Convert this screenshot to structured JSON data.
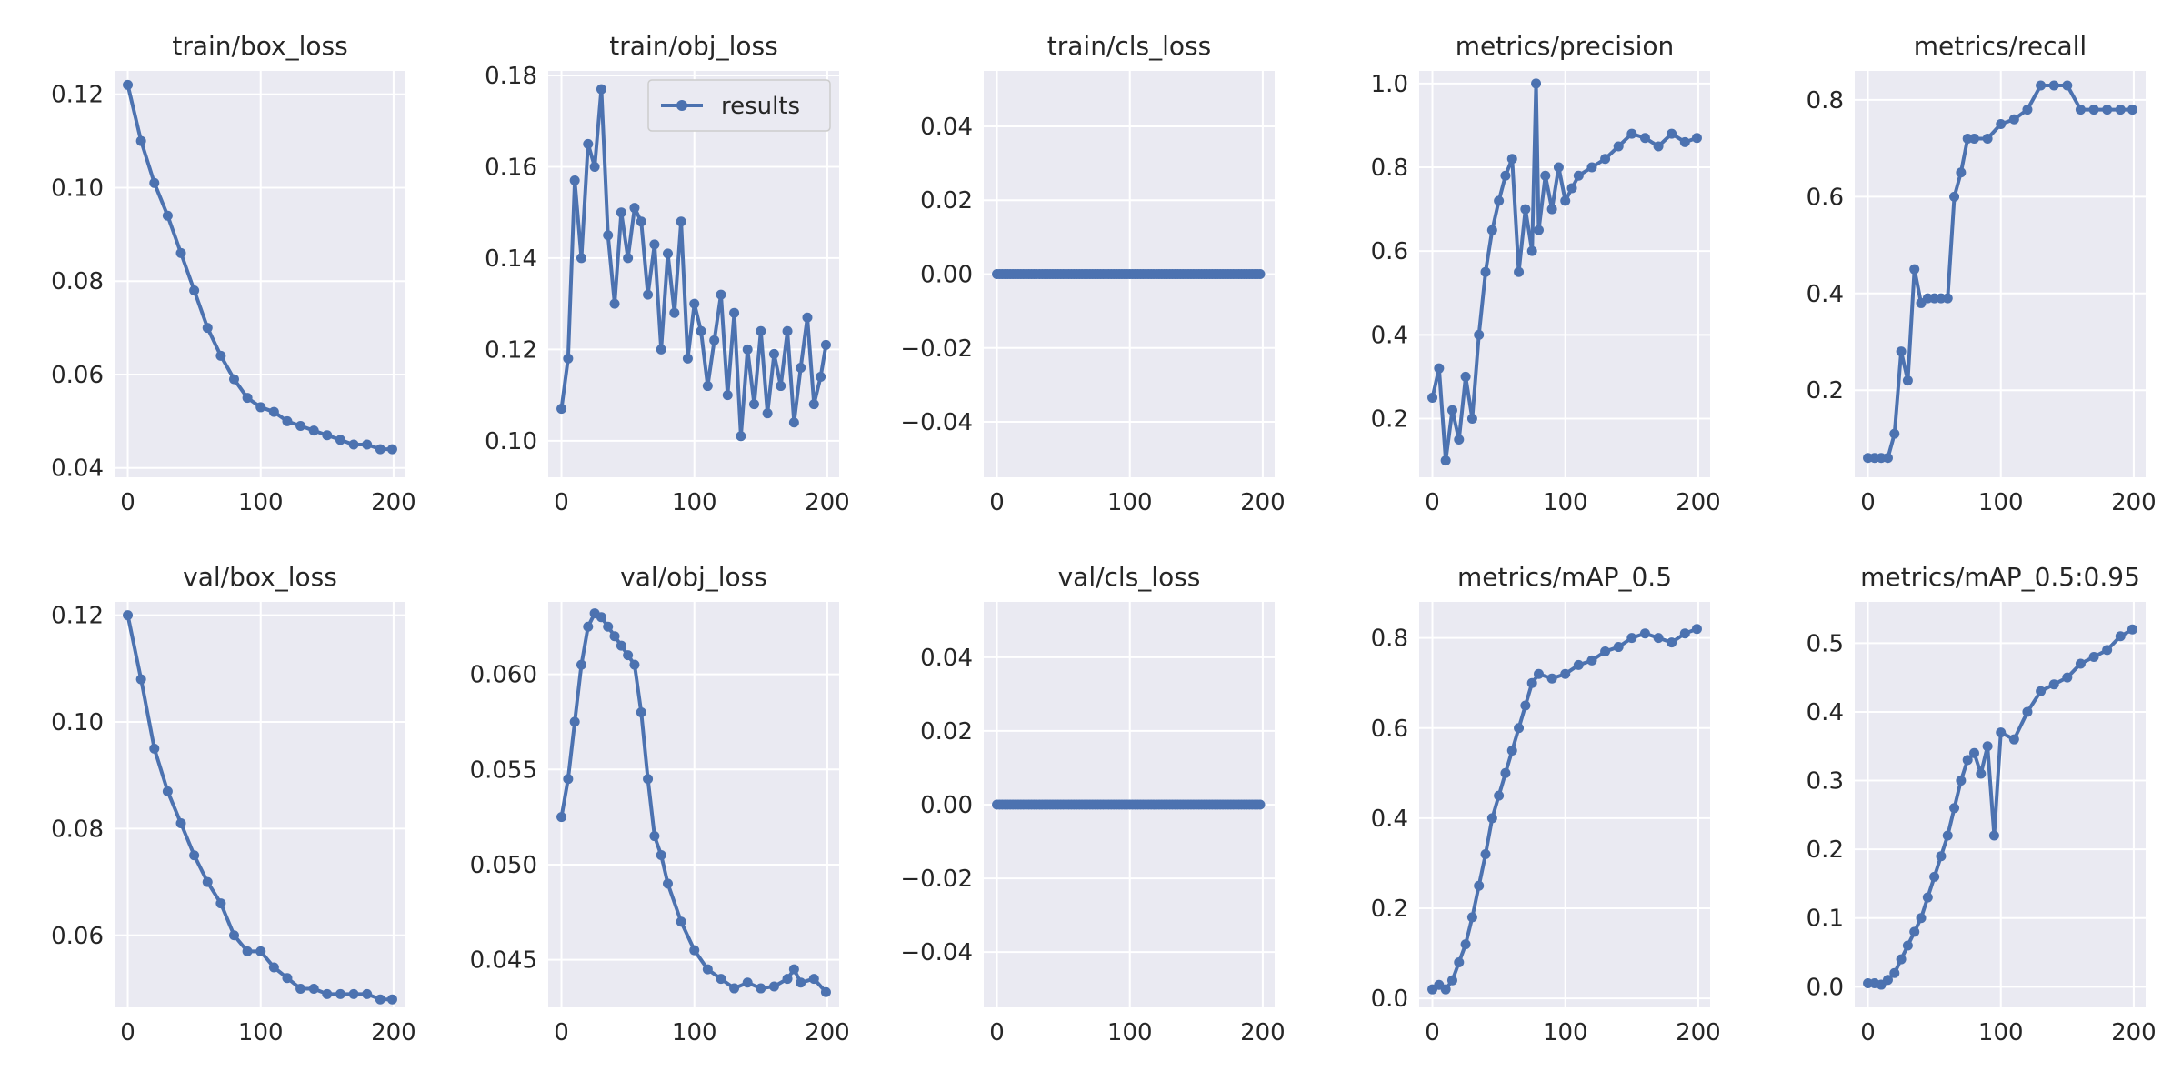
{
  "figure": {
    "title": "results"
  },
  "style": {
    "series_color": "#4C72B0",
    "panel_bg": "#EAEAF2",
    "grid_color": "#ffffff",
    "text_color": "#262626"
  },
  "chart_data": [
    {
      "id": "train_box_loss",
      "type": "line",
      "title": "train/box_loss",
      "xlim": [
        0,
        199
      ],
      "ylim": [
        0.038,
        0.125
      ],
      "xticks": [
        0,
        100,
        200
      ],
      "yticks": [
        0.04,
        0.06,
        0.08,
        0.1,
        0.12
      ],
      "ytick_labels": [
        "0.04",
        "0.06",
        "0.08",
        "0.10",
        "0.12"
      ],
      "legend": null,
      "series": [
        {
          "name": "results",
          "x": [
            0,
            10,
            20,
            30,
            40,
            50,
            60,
            70,
            80,
            90,
            100,
            110,
            120,
            130,
            140,
            150,
            160,
            170,
            180,
            190,
            199
          ],
          "y": [
            0.122,
            0.11,
            0.101,
            0.094,
            0.086,
            0.078,
            0.07,
            0.064,
            0.059,
            0.055,
            0.053,
            0.052,
            0.05,
            0.049,
            0.048,
            0.047,
            0.046,
            0.045,
            0.045,
            0.044,
            0.044
          ]
        }
      ]
    },
    {
      "id": "train_obj_loss",
      "type": "line",
      "title": "train/obj_loss",
      "xlim": [
        0,
        199
      ],
      "ylim": [
        0.092,
        0.181
      ],
      "xticks": [
        0,
        100,
        200
      ],
      "yticks": [
        0.1,
        0.12,
        0.14,
        0.16,
        0.18
      ],
      "ytick_labels": [
        "0.10",
        "0.12",
        "0.14",
        "0.16",
        "0.18"
      ],
      "legend": {
        "label": "results",
        "placement": "upper right"
      },
      "series": [
        {
          "name": "results",
          "x": [
            0,
            5,
            10,
            15,
            20,
            25,
            30,
            35,
            40,
            45,
            50,
            55,
            60,
            65,
            70,
            75,
            80,
            85,
            90,
            95,
            100,
            105,
            110,
            115,
            120,
            125,
            130,
            135,
            140,
            145,
            150,
            155,
            160,
            165,
            170,
            175,
            180,
            185,
            190,
            195,
            199
          ],
          "y": [
            0.107,
            0.118,
            0.157,
            0.14,
            0.165,
            0.16,
            0.177,
            0.145,
            0.13,
            0.15,
            0.14,
            0.151,
            0.148,
            0.132,
            0.143,
            0.12,
            0.141,
            0.128,
            0.148,
            0.118,
            0.13,
            0.124,
            0.112,
            0.122,
            0.132,
            0.11,
            0.128,
            0.101,
            0.12,
            0.108,
            0.124,
            0.106,
            0.119,
            0.112,
            0.124,
            0.104,
            0.116,
            0.127,
            0.108,
            0.114,
            0.121
          ]
        }
      ]
    },
    {
      "id": "train_cls_loss",
      "type": "line",
      "title": "train/cls_loss",
      "xlim": [
        0,
        199
      ],
      "ylim": [
        -0.055,
        0.055
      ],
      "xticks": [
        0,
        100,
        200
      ],
      "yticks": [
        -0.04,
        -0.02,
        0.0,
        0.02,
        0.04
      ],
      "ytick_labels": [
        "−0.04",
        "−0.02",
        "0.00",
        "0.02",
        "0.04"
      ],
      "legend": null,
      "series": [
        {
          "name": "results",
          "x": [
            0,
            199
          ],
          "y": [
            0,
            0
          ]
        }
      ]
    },
    {
      "id": "metrics_precision",
      "type": "line",
      "title": "metrics/precision",
      "xlim": [
        0,
        199
      ],
      "ylim": [
        0.06,
        1.03
      ],
      "xticks": [
        0,
        100,
        200
      ],
      "yticks": [
        0.2,
        0.4,
        0.6,
        0.8,
        1.0
      ],
      "ytick_labels": [
        "0.2",
        "0.4",
        "0.6",
        "0.8",
        "1.0"
      ],
      "legend": null,
      "series": [
        {
          "name": "results",
          "x": [
            0,
            5,
            10,
            15,
            20,
            25,
            30,
            35,
            40,
            45,
            50,
            55,
            60,
            65,
            70,
            75,
            78,
            80,
            85,
            90,
            95,
            100,
            105,
            110,
            120,
            130,
            140,
            150,
            160,
            170,
            180,
            190,
            199
          ],
          "y": [
            0.25,
            0.32,
            0.1,
            0.22,
            0.15,
            0.3,
            0.2,
            0.4,
            0.55,
            0.65,
            0.72,
            0.78,
            0.82,
            0.55,
            0.7,
            0.6,
            1.0,
            0.65,
            0.78,
            0.7,
            0.8,
            0.72,
            0.75,
            0.78,
            0.8,
            0.82,
            0.85,
            0.88,
            0.87,
            0.85,
            0.88,
            0.86,
            0.87
          ]
        }
      ]
    },
    {
      "id": "metrics_recall",
      "type": "line",
      "title": "metrics/recall",
      "xlim": [
        0,
        199
      ],
      "ylim": [
        0.02,
        0.86
      ],
      "xticks": [
        0,
        100,
        200
      ],
      "yticks": [
        0.2,
        0.4,
        0.6,
        0.8
      ],
      "ytick_labels": [
        "0.2",
        "0.4",
        "0.6",
        "0.8"
      ],
      "legend": null,
      "series": [
        {
          "name": "results",
          "x": [
            0,
            5,
            10,
            15,
            20,
            25,
            30,
            35,
            40,
            45,
            50,
            55,
            60,
            65,
            70,
            75,
            80,
            90,
            100,
            110,
            120,
            130,
            140,
            150,
            160,
            170,
            180,
            190,
            199
          ],
          "y": [
            0.06,
            0.06,
            0.06,
            0.06,
            0.11,
            0.28,
            0.22,
            0.45,
            0.38,
            0.39,
            0.39,
            0.39,
            0.39,
            0.6,
            0.65,
            0.72,
            0.72,
            0.72,
            0.75,
            0.76,
            0.78,
            0.83,
            0.83,
            0.83,
            0.78,
            0.78,
            0.78,
            0.78,
            0.78
          ]
        }
      ]
    },
    {
      "id": "val_box_loss",
      "type": "line",
      "title": "val/box_loss",
      "xlim": [
        0,
        199
      ],
      "ylim": [
        0.0465,
        0.1225
      ],
      "xticks": [
        0,
        100,
        200
      ],
      "yticks": [
        0.06,
        0.08,
        0.1,
        0.12
      ],
      "ytick_labels": [
        "0.06",
        "0.08",
        "0.10",
        "0.12"
      ],
      "legend": null,
      "series": [
        {
          "name": "results",
          "x": [
            0,
            10,
            20,
            30,
            40,
            50,
            60,
            70,
            80,
            90,
            100,
            110,
            120,
            130,
            140,
            150,
            160,
            170,
            180,
            190,
            199
          ],
          "y": [
            0.12,
            0.108,
            0.095,
            0.087,
            0.081,
            0.075,
            0.07,
            0.066,
            0.06,
            0.057,
            0.057,
            0.054,
            0.052,
            0.05,
            0.05,
            0.049,
            0.049,
            0.049,
            0.049,
            0.048,
            0.048
          ]
        }
      ]
    },
    {
      "id": "val_obj_loss",
      "type": "line",
      "title": "val/obj_loss",
      "xlim": [
        0,
        199
      ],
      "ylim": [
        0.0425,
        0.0638
      ],
      "xticks": [
        0,
        100,
        200
      ],
      "yticks": [
        0.045,
        0.05,
        0.055,
        0.06
      ],
      "ytick_labels": [
        "0.045",
        "0.050",
        "0.055",
        "0.060"
      ],
      "legend": null,
      "series": [
        {
          "name": "results",
          "x": [
            0,
            5,
            10,
            15,
            20,
            25,
            30,
            35,
            40,
            45,
            50,
            55,
            60,
            65,
            70,
            75,
            80,
            90,
            100,
            110,
            120,
            130,
            140,
            150,
            160,
            170,
            175,
            180,
            190,
            199
          ],
          "y": [
            0.0525,
            0.0545,
            0.0575,
            0.0605,
            0.0625,
            0.0632,
            0.063,
            0.0625,
            0.062,
            0.0615,
            0.061,
            0.0605,
            0.058,
            0.0545,
            0.0515,
            0.0505,
            0.049,
            0.047,
            0.0455,
            0.0445,
            0.044,
            0.0435,
            0.0438,
            0.0435,
            0.0436,
            0.044,
            0.0445,
            0.0438,
            0.044,
            0.0433
          ]
        }
      ]
    },
    {
      "id": "val_cls_loss",
      "type": "line",
      "title": "val/cls_loss",
      "xlim": [
        0,
        199
      ],
      "ylim": [
        -0.055,
        0.055
      ],
      "xticks": [
        0,
        100,
        200
      ],
      "yticks": [
        -0.04,
        -0.02,
        0.0,
        0.02,
        0.04
      ],
      "ytick_labels": [
        "−0.04",
        "−0.02",
        "0.00",
        "0.02",
        "0.04"
      ],
      "legend": null,
      "series": [
        {
          "name": "results",
          "x": [
            0,
            199
          ],
          "y": [
            0,
            0
          ]
        }
      ]
    },
    {
      "id": "metrics_map_05",
      "type": "line",
      "title": "metrics/mAP_0.5",
      "xlim": [
        0,
        199
      ],
      "ylim": [
        -0.02,
        0.88
      ],
      "xticks": [
        0,
        100,
        200
      ],
      "yticks": [
        0.0,
        0.2,
        0.4,
        0.6,
        0.8
      ],
      "ytick_labels": [
        "0.0",
        "0.2",
        "0.4",
        "0.6",
        "0.8"
      ],
      "legend": null,
      "series": [
        {
          "name": "results",
          "x": [
            0,
            5,
            10,
            15,
            20,
            25,
            30,
            35,
            40,
            45,
            50,
            55,
            60,
            65,
            70,
            75,
            80,
            90,
            100,
            110,
            120,
            130,
            140,
            150,
            160,
            170,
            180,
            190,
            199
          ],
          "y": [
            0.02,
            0.03,
            0.02,
            0.04,
            0.08,
            0.12,
            0.18,
            0.25,
            0.32,
            0.4,
            0.45,
            0.5,
            0.55,
            0.6,
            0.65,
            0.7,
            0.72,
            0.71,
            0.72,
            0.74,
            0.75,
            0.77,
            0.78,
            0.8,
            0.81,
            0.8,
            0.79,
            0.81,
            0.82
          ]
        }
      ]
    },
    {
      "id": "metrics_map_05_095",
      "type": "line",
      "title": "metrics/mAP_0.5:0.95",
      "xlim": [
        0,
        199
      ],
      "ylim": [
        -0.03,
        0.56
      ],
      "xticks": [
        0,
        100,
        200
      ],
      "yticks": [
        0.0,
        0.1,
        0.2,
        0.3,
        0.4,
        0.5
      ],
      "ytick_labels": [
        "0.0",
        "0.1",
        "0.2",
        "0.3",
        "0.4",
        "0.5"
      ],
      "legend": null,
      "series": [
        {
          "name": "results",
          "x": [
            0,
            5,
            10,
            15,
            20,
            25,
            30,
            35,
            40,
            45,
            50,
            55,
            60,
            65,
            70,
            75,
            80,
            85,
            90,
            95,
            100,
            110,
            120,
            130,
            140,
            150,
            160,
            170,
            180,
            190,
            199
          ],
          "y": [
            0.005,
            0.005,
            0.003,
            0.01,
            0.02,
            0.04,
            0.06,
            0.08,
            0.1,
            0.13,
            0.16,
            0.19,
            0.22,
            0.26,
            0.3,
            0.33,
            0.34,
            0.31,
            0.35,
            0.22,
            0.37,
            0.36,
            0.4,
            0.43,
            0.44,
            0.45,
            0.47,
            0.48,
            0.49,
            0.51,
            0.52
          ]
        }
      ]
    }
  ]
}
